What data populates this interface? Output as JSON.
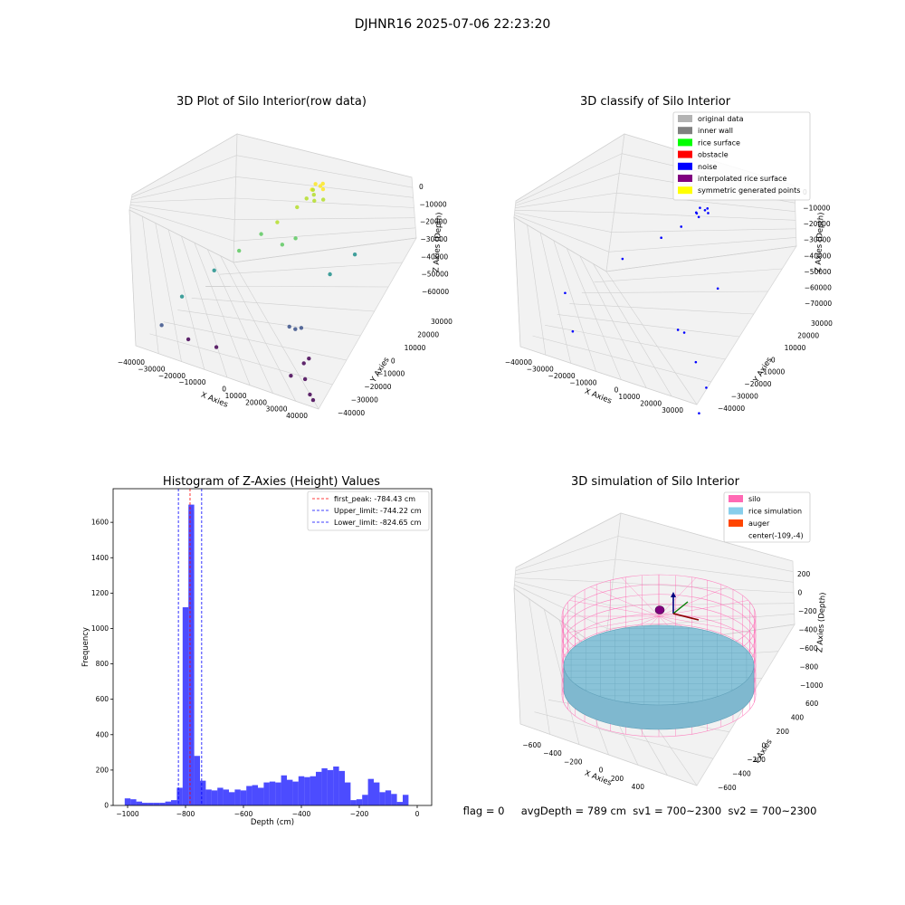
{
  "suptitle": "DJHNR16 2025-07-06 22:23:20",
  "status_line": "flag = 0     avgDepth = 789 cm  sv1 = 700~2300  sv2 = 700~2300",
  "chart_data": [
    {
      "type": "scatter",
      "projection": "3d",
      "title": "3D Plot of Silo Interior(row data)",
      "xlabel": "X Axies",
      "ylabel": "Y Axies",
      "zlabel": "Z Axies (Depth)",
      "x_ticks": [
        "−40000",
        "−30000",
        "−20000",
        "−10000",
        "0",
        "10000",
        "20000",
        "30000",
        "40000"
      ],
      "y_ticks": [
        "−40000",
        "−30000",
        "−20000",
        "−10000",
        "0",
        "10000",
        "20000",
        "30000"
      ],
      "z_ticks": [
        "0",
        "−10000",
        "−20000",
        "−30000",
        "−40000",
        "−50000",
        "−60000"
      ],
      "xlim": [
        -40000,
        40000
      ],
      "ylim": [
        -40000,
        30000
      ],
      "zlim": [
        -65000,
        0
      ],
      "colormap": "viridis",
      "points": [
        {
          "x": 2000,
          "y": 20000,
          "z": -8000
        },
        {
          "x": 3500,
          "y": 21000,
          "z": -9000
        },
        {
          "x": 1000,
          "y": 19000,
          "z": -10000
        },
        {
          "x": 4000,
          "y": 22000,
          "z": -8500
        },
        {
          "x": 2500,
          "y": 18000,
          "z": -11000
        },
        {
          "x": 5000,
          "y": 20500,
          "z": -9500
        },
        {
          "x": 0,
          "y": 21500,
          "z": -12000
        },
        {
          "x": 3000,
          "y": 17500,
          "z": -13000
        },
        {
          "x": -1000,
          "y": 18500,
          "z": -14000
        },
        {
          "x": 6000,
          "y": 19000,
          "z": -12500
        },
        {
          "x": -3000,
          "y": 15000,
          "z": -16000
        },
        {
          "x": -8000,
          "y": 9000,
          "z": -20000
        },
        {
          "x": -12000,
          "y": 4000,
          "z": -23000
        },
        {
          "x": -18000,
          "y": -2000,
          "z": -28000
        },
        {
          "x": -24000,
          "y": -10000,
          "z": -33000
        },
        {
          "x": -32000,
          "y": -20000,
          "z": -40000
        },
        {
          "x": -36000,
          "y": -28000,
          "z": -48000
        },
        {
          "x": -28000,
          "y": -22000,
          "z": -55000
        },
        {
          "x": -20000,
          "y": -15000,
          "z": -60000
        },
        {
          "x": -4000,
          "y": 6000,
          "z": -26000
        },
        {
          "x": 0,
          "y": 9000,
          "z": -24000
        },
        {
          "x": 12000,
          "y": 14000,
          "z": -38000
        },
        {
          "x": 18000,
          "y": 22000,
          "z": -33000
        },
        {
          "x": 4000,
          "y": -2000,
          "z": -52000
        },
        {
          "x": 6000,
          "y": -1000,
          "z": -53000
        },
        {
          "x": 8000,
          "y": 0,
          "z": -52500
        },
        {
          "x": 14000,
          "y": -8000,
          "z": -60000
        },
        {
          "x": 15000,
          "y": -6000,
          "z": -59000
        },
        {
          "x": 12000,
          "y": -14000,
          "z": -62000
        },
        {
          "x": 17000,
          "y": -12000,
          "z": -63000
        },
        {
          "x": 24000,
          "y": -20000,
          "z": -62000
        },
        {
          "x": 26000,
          "y": -21000,
          "z": -63000
        }
      ]
    },
    {
      "type": "scatter",
      "projection": "3d",
      "title": "3D classify of Silo Interior",
      "xlabel": "X Axies",
      "ylabel": "Y Axies",
      "zlabel": "Z Axies (Depth)",
      "x_ticks": [
        "−40000",
        "−30000",
        "−20000",
        "−10000",
        "0",
        "10000",
        "20000",
        "30000"
      ],
      "y_ticks": [
        "−40000",
        "−30000",
        "−20000",
        "−10000",
        "0",
        "10000",
        "20000",
        "30000"
      ],
      "z_ticks": [
        "0",
        "−10000",
        "−20000",
        "−30000",
        "−40000",
        "−50000",
        "−60000",
        "−70000"
      ],
      "xlim": [
        -40000,
        30000
      ],
      "ylim": [
        -40000,
        30000
      ],
      "zlim": [
        -70000,
        0
      ],
      "legend": [
        {
          "label": "original data",
          "color": "#b3b3b3"
        },
        {
          "label": "inner wall",
          "color": "#808080"
        },
        {
          "label": "rice surface",
          "color": "#00ff00"
        },
        {
          "label": "obstacle",
          "color": "#ff0000"
        },
        {
          "label": "noise",
          "color": "#0000ff"
        },
        {
          "label": "interpolated rice surface",
          "color": "#800080"
        },
        {
          "label": "symmetric generated points",
          "color": "#ffff00"
        }
      ],
      "legend_loc": "upper-right",
      "points": [
        {
          "x": 2000,
          "y": 20000,
          "z": -8000
        },
        {
          "x": 3500,
          "y": 21000,
          "z": -9000
        },
        {
          "x": 1000,
          "y": 19000,
          "z": -10000
        },
        {
          "x": 4000,
          "y": 22000,
          "z": -8500
        },
        {
          "x": 2500,
          "y": 18000,
          "z": -11000
        },
        {
          "x": 5000,
          "y": 20500,
          "z": -9500
        },
        {
          "x": 0,
          "y": 21500,
          "z": -12000
        },
        {
          "x": -3000,
          "y": 15000,
          "z": -16000
        },
        {
          "x": -8000,
          "y": 9000,
          "z": -20000
        },
        {
          "x": -18000,
          "y": -2000,
          "z": -28000
        },
        {
          "x": -32000,
          "y": -20000,
          "z": -40000
        },
        {
          "x": -28000,
          "y": -22000,
          "z": -55000
        },
        {
          "x": 4000,
          "y": -2000,
          "z": -52000
        },
        {
          "x": 6000,
          "y": -1000,
          "z": -53000
        },
        {
          "x": 14000,
          "y": -8000,
          "z": -60000
        },
        {
          "x": 24000,
          "y": -20000,
          "z": -62000
        },
        {
          "x": 12000,
          "y": 14000,
          "z": -38000
        },
        {
          "x": 26000,
          "y": -30000,
          "z": -68000
        }
      ]
    },
    {
      "type": "bar",
      "title": "Histogram of Z-Axies (Height) Values",
      "xlabel": "Depth (cm)",
      "ylabel": "Frequency",
      "xlim": [
        -1050,
        50
      ],
      "ylim": [
        0,
        1790
      ],
      "x_ticks": [
        -1000,
        -800,
        -600,
        -400,
        -200,
        0
      ],
      "y_ticks": [
        0,
        200,
        400,
        600,
        800,
        1000,
        1200,
        1400,
        1600
      ],
      "bin_start": -1010,
      "bin_width": 20,
      "bar_color": "#0000ff",
      "bar_alpha": 0.7,
      "values": [
        40,
        35,
        22,
        15,
        15,
        15,
        15,
        22,
        30,
        100,
        1120,
        1700,
        280,
        140,
        90,
        85,
        100,
        90,
        75,
        90,
        85,
        110,
        115,
        100,
        130,
        135,
        130,
        170,
        145,
        135,
        165,
        160,
        165,
        190,
        210,
        200,
        220,
        195,
        130,
        30,
        35,
        60,
        150,
        130,
        75,
        85,
        65,
        20,
        60
      ],
      "vlines": [
        {
          "x": -784.43,
          "color": "#ff0000",
          "label": "first_peak: -784.43 cm"
        },
        {
          "x": -744.22,
          "color": "#0000ff",
          "label": "Upper_limit: -744.22 cm"
        },
        {
          "x": -824.65,
          "color": "#0000ff",
          "label": "Lower_limit: -824.65 cm"
        }
      ],
      "legend_loc": "upper-right"
    },
    {
      "type": "scatter",
      "projection": "3d",
      "title": "3D simulation of Silo Interior",
      "xlabel": "X Axies",
      "ylabel": "Y Axies",
      "zlabel": "Z Axies (Depth)",
      "x_ticks": [
        "−600",
        "−400",
        "−200",
        "0",
        "200",
        "400"
      ],
      "y_ticks": [
        "−600",
        "−400",
        "−200",
        "0",
        "200",
        "400",
        "600"
      ],
      "z_ticks": [
        "200",
        "0",
        "−200",
        "−400",
        "−600",
        "−800",
        "−1000"
      ],
      "xlim": [
        -700,
        500
      ],
      "ylim": [
        -650,
        650
      ],
      "zlim": [
        -1100,
        300
      ],
      "silo_radius": 600,
      "silo_top": 200,
      "silo_bottom": -1000,
      "rice_level": -789,
      "center": [
        -109,
        -4
      ],
      "legend": [
        {
          "label": "silo",
          "color": "#ff69b4"
        },
        {
          "label": "rice simulation",
          "color": "#87ceeb"
        },
        {
          "label": "auger",
          "color": "#ff4500"
        },
        {
          "label": "center(-109,-4)",
          "color": ""
        }
      ],
      "legend_loc": "upper-right"
    }
  ]
}
